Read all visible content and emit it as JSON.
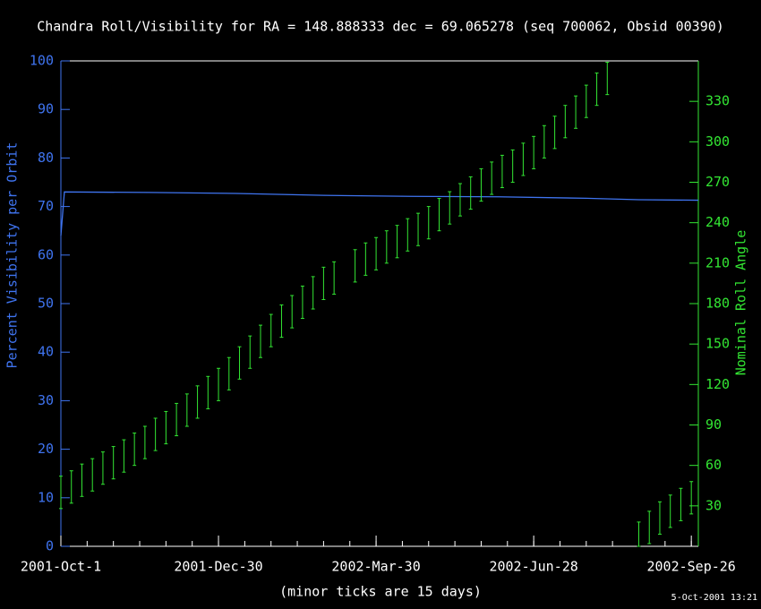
{
  "chart_data": {
    "type": "line-errorbar",
    "title": "Chandra Roll/Visibility for RA = 148.888333 dec = 69.065278 (seq 700062, Obsid 00390)",
    "ylabel": "Percent Visibility per Orbit",
    "y2label": "Nominal Roll Angle",
    "xlabel": "(minor ticks are 15 days)",
    "footer": "5-Oct-2001 13:21",
    "xlim": [
      0,
      364
    ],
    "xticks": [
      {
        "value": 0,
        "label": "2001-Oct-1"
      },
      {
        "value": 90,
        "label": "2001-Dec-30"
      },
      {
        "value": 180,
        "label": "2002-Mar-30"
      },
      {
        "value": 270,
        "label": "2002-Jun-28"
      },
      {
        "value": 360,
        "label": "2002-Sep-26"
      }
    ],
    "xminor_step": 15,
    "ylim": [
      0,
      100
    ],
    "yticks": [
      0,
      10,
      20,
      30,
      40,
      50,
      60,
      70,
      80,
      90,
      100
    ],
    "y2lim": [
      0,
      360
    ],
    "y2ticks": [
      30,
      60,
      90,
      120,
      150,
      180,
      210,
      240,
      270,
      300,
      330
    ],
    "series": [
      {
        "axis": "y",
        "color": "#3f74f0",
        "x": [
          0,
          2,
          50,
          100,
          150,
          200,
          250,
          300,
          330,
          364
        ],
        "values": [
          64,
          73,
          72.9,
          72.7,
          72.3,
          72.1,
          72.0,
          71.7,
          71.4,
          71.3
        ]
      },
      {
        "axis": "y2",
        "color": "#33e633",
        "x": [
          0,
          6,
          12,
          18,
          24,
          30,
          36,
          42,
          48,
          54,
          60,
          66,
          72,
          78,
          84,
          90,
          96,
          102,
          108,
          114,
          120,
          126,
          132,
          138,
          144,
          150,
          156,
          168,
          174,
          180,
          186,
          192,
          198,
          204,
          210,
          216,
          222,
          228,
          234,
          240,
          246,
          252,
          258,
          264,
          270,
          276,
          282,
          288,
          294,
          300,
          306,
          312,
          330,
          336,
          342,
          348,
          354,
          360
        ],
        "low": [
          28,
          32,
          37,
          41,
          46,
          50,
          55,
          60,
          65,
          71,
          76,
          82,
          89,
          95,
          102,
          108,
          116,
          124,
          132,
          140,
          148,
          155,
          162,
          169,
          176,
          183,
          187,
          196,
          201,
          205,
          210,
          214,
          219,
          223,
          228,
          234,
          239,
          245,
          250,
          256,
          261,
          266,
          270,
          275,
          280,
          288,
          295,
          303,
          310,
          318,
          327,
          335,
          0,
          2,
          9,
          14,
          19,
          24
        ],
        "high": [
          52,
          56,
          61,
          65,
          70,
          74,
          79,
          84,
          89,
          95,
          100,
          106,
          113,
          119,
          126,
          132,
          140,
          148,
          156,
          164,
          172,
          179,
          186,
          193,
          200,
          207,
          211,
          220,
          225,
          229,
          234,
          238,
          243,
          247,
          252,
          258,
          263,
          269,
          274,
          280,
          285,
          290,
          294,
          299,
          304,
          312,
          319,
          327,
          334,
          342,
          351,
          359,
          18,
          26,
          33,
          38,
          43,
          48
        ]
      }
    ]
  }
}
